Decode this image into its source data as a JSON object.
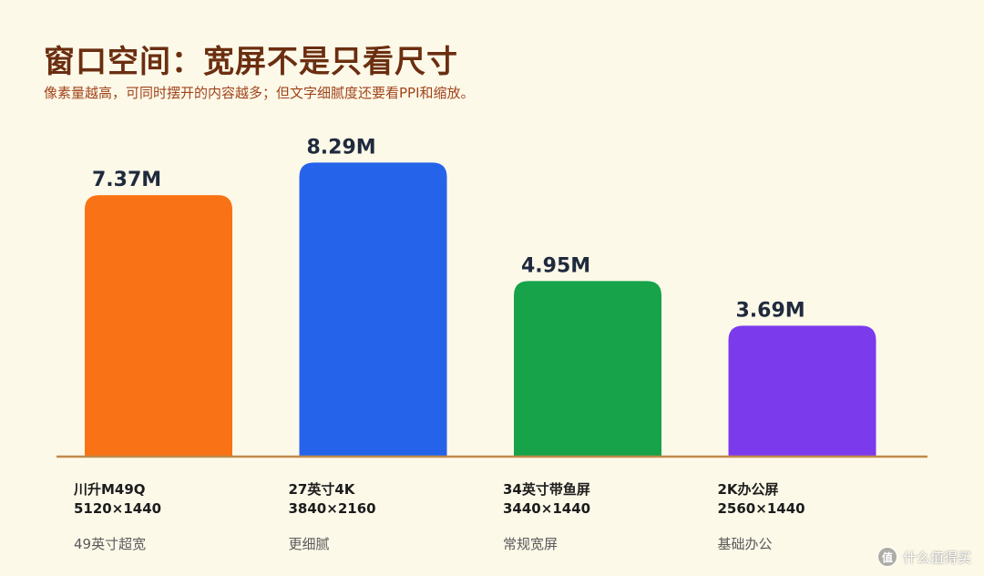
{
  "header": {
    "title": "窗口空间：宽屏不是只看尺寸",
    "subtitle": "像素量越高，可同时摆开的内容越多；但文字细腻度还要看PPI和缩放。"
  },
  "chart_data": {
    "type": "bar",
    "title": "窗口空间：宽屏不是只看尺寸",
    "subtitle": "像素量越高，可同时摆开的内容越多；但文字细腻度还要看PPI和缩放。",
    "xlabel": "",
    "ylabel": "",
    "ylim": [
      0,
      9.3
    ],
    "grid": false,
    "categories": [
      {
        "name": "川升M49Q",
        "resolution": "5120×1440",
        "note": "49英寸超宽"
      },
      {
        "name": "27英寸4K",
        "resolution": "3840×2160",
        "note": "更细腻"
      },
      {
        "name": "34英寸带鱼屏",
        "resolution": "3440×1440",
        "note": "常规宽屏"
      },
      {
        "name": "2K办公屏",
        "resolution": "2560×1440",
        "note": "基础办公"
      }
    ],
    "values": [
      7.37,
      8.29,
      4.95,
      3.69
    ],
    "value_labels": [
      "7.37M",
      "8.29M",
      "4.95M",
      "3.69M"
    ],
    "colors": [
      "#f97316",
      "#2563eb",
      "#16a34a",
      "#7c3aed"
    ],
    "axis_color": "#c08a4a"
  },
  "watermark": {
    "icon": "zhi-logo-icon",
    "icon_glyph": "值",
    "text": "什么值得买"
  }
}
